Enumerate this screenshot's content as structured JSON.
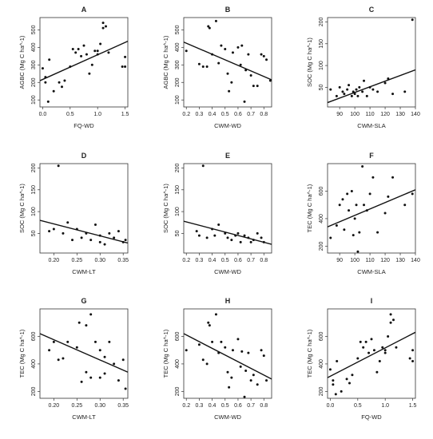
{
  "chart_data": [
    {
      "type": "scatter",
      "title": "A",
      "xlabel": "FQ-WD",
      "ylabel": "AGBC (Mg C ha^-1)",
      "xlim": [
        -0.05,
        1.55
      ],
      "ylim": [
        60,
        570
      ],
      "xticks": [
        0.0,
        0.5,
        1.0,
        1.5
      ],
      "xtick_labels": [
        "0.0",
        "0.5",
        "1.0",
        "1.5"
      ],
      "yticks": [
        100,
        200,
        300,
        400,
        500
      ],
      "ytick_labels": [
        "100",
        "200",
        "300",
        "400",
        "500"
      ],
      "x": [
        0.0,
        0.05,
        0.05,
        0.1,
        0.12,
        0.2,
        0.3,
        0.35,
        0.4,
        0.5,
        0.55,
        0.6,
        0.65,
        0.7,
        0.75,
        0.8,
        0.85,
        0.9,
        0.95,
        1.0,
        1.0,
        1.05,
        1.1,
        1.1,
        1.15,
        1.2,
        1.45,
        1.5,
        1.5
      ],
      "y": [
        280,
        200,
        230,
        90,
        330,
        150,
        200,
        175,
        210,
        290,
        390,
        370,
        390,
        350,
        410,
        360,
        250,
        300,
        380,
        360,
        380,
        420,
        510,
        540,
        520,
        370,
        290,
        290,
        345
      ],
      "trend": [
        [
          -0.05,
          210
        ],
        [
          1.55,
          435
        ]
      ]
    },
    {
      "type": "scatter",
      "title": "B",
      "xlabel": "CWM-WD",
      "ylabel": "AGBC (Mg C ha^-1)",
      "xlim": [
        0.18,
        0.86
      ],
      "ylim": [
        60,
        570
      ],
      "xticks": [
        0.2,
        0.3,
        0.4,
        0.5,
        0.6,
        0.7,
        0.8
      ],
      "xtick_labels": [
        "0.2",
        "0.3",
        "0.4",
        "0.5",
        "0.6",
        "0.7",
        "0.8"
      ],
      "yticks": [
        100,
        200,
        300,
        400,
        500
      ],
      "ytick_labels": [
        "100",
        "200",
        "300",
        "400",
        "500"
      ],
      "x": [
        0.2,
        0.3,
        0.33,
        0.36,
        0.37,
        0.38,
        0.4,
        0.43,
        0.45,
        0.47,
        0.5,
        0.52,
        0.53,
        0.55,
        0.56,
        0.6,
        0.62,
        0.63,
        0.65,
        0.66,
        0.68,
        0.7,
        0.72,
        0.75,
        0.78,
        0.8,
        0.82,
        0.85
      ],
      "y": [
        380,
        305,
        290,
        290,
        520,
        510,
        360,
        550,
        310,
        410,
        390,
        250,
        150,
        200,
        370,
        400,
        300,
        410,
        90,
        270,
        360,
        240,
        180,
        180,
        360,
        350,
        330,
        210
      ],
      "trend": [
        [
          0.18,
          430
        ],
        [
          0.86,
          215
        ]
      ]
    },
    {
      "type": "scatter",
      "title": "C",
      "xlabel": "CWM-SLA",
      "ylabel": "SOC (Mg C ha^-1)",
      "xlim": [
        82,
        140
      ],
      "ylim": [
        5,
        210
      ],
      "xticks": [
        90,
        100,
        110,
        120,
        130,
        140
      ],
      "xtick_labels": [
        "90",
        "100",
        "110",
        "120",
        "130",
        "140"
      ],
      "yticks": [
        50,
        100,
        150,
        200
      ],
      "ytick_labels": [
        "50",
        "100",
        "150",
        "200"
      ],
      "x": [
        84,
        88,
        90,
        92,
        93,
        95,
        96,
        98,
        99,
        100,
        101,
        102,
        103,
        105,
        106,
        108,
        110,
        112,
        115,
        120,
        122,
        125,
        133,
        138
      ],
      "y": [
        45,
        30,
        50,
        40,
        35,
        45,
        55,
        30,
        40,
        35,
        45,
        30,
        50,
        40,
        65,
        30,
        50,
        45,
        40,
        60,
        70,
        35,
        40,
        205
      ],
      "trend": [
        [
          82,
          15
        ],
        [
          140,
          90
        ]
      ]
    },
    {
      "type": "scatter",
      "title": "D",
      "xlabel": "CWM-LT",
      "ylabel": "SOC (Mg C ha^-1)",
      "xlim": [
        0.17,
        0.36
      ],
      "ylim": [
        5,
        210
      ],
      "xticks": [
        0.2,
        0.25,
        0.3,
        0.35
      ],
      "xtick_labels": [
        "0.20",
        "0.25",
        "0.30",
        "0.35"
      ],
      "yticks": [
        50,
        100,
        150,
        200
      ],
      "ytick_labels": [
        "50",
        "100",
        "150",
        "200"
      ],
      "x": [
        0.19,
        0.2,
        0.21,
        0.22,
        0.23,
        0.24,
        0.25,
        0.26,
        0.27,
        0.28,
        0.29,
        0.3,
        0.3,
        0.31,
        0.32,
        0.33,
        0.34,
        0.35,
        0.355
      ],
      "y": [
        55,
        60,
        205,
        50,
        75,
        35,
        60,
        40,
        50,
        35,
        70,
        30,
        45,
        25,
        50,
        40,
        55,
        30,
        35
      ],
      "trend": [
        [
          0.17,
          80
        ],
        [
          0.36,
          28
        ]
      ]
    },
    {
      "type": "scatter",
      "title": "E",
      "xlabel": "CWM-WD",
      "ylabel": "SOC (Mg C ha^-1)",
      "xlim": [
        0.18,
        0.86
      ],
      "ylim": [
        5,
        210
      ],
      "xticks": [
        0.2,
        0.3,
        0.4,
        0.5,
        0.6,
        0.7,
        0.8
      ],
      "xtick_labels": [
        "0.2",
        "0.3",
        "0.4",
        "0.5",
        "0.6",
        "0.7",
        "0.8"
      ],
      "yticks": [
        50,
        100,
        150,
        200
      ],
      "ytick_labels": [
        "50",
        "100",
        "150",
        "200"
      ],
      "x": [
        0.28,
        0.3,
        0.33,
        0.36,
        0.4,
        0.42,
        0.45,
        0.5,
        0.52,
        0.55,
        0.58,
        0.6,
        0.62,
        0.65,
        0.68,
        0.7,
        0.72,
        0.75,
        0.78,
        0.8
      ],
      "y": [
        55,
        45,
        205,
        40,
        60,
        45,
        70,
        50,
        40,
        35,
        45,
        50,
        30,
        45,
        40,
        30,
        35,
        50,
        40,
        30
      ],
      "trend": [
        [
          0.18,
          78
        ],
        [
          0.86,
          25
        ]
      ]
    },
    {
      "type": "scatter",
      "title": "F",
      "xlabel": "CWM-SLA",
      "ylabel": "TEC (Mg C ha^-1)",
      "xlim": [
        82,
        140
      ],
      "ylim": [
        150,
        800
      ],
      "xticks": [
        90,
        100,
        110,
        120,
        130,
        140
      ],
      "xtick_labels": [
        "90",
        "100",
        "110",
        "120",
        "130",
        "140"
      ],
      "yticks": [
        200,
        400,
        600
      ],
      "ytick_labels": [
        "200",
        "400",
        "600"
      ],
      "x": [
        84,
        88,
        90,
        92,
        93,
        95,
        96,
        98,
        99,
        100,
        101,
        102,
        103,
        105,
        106,
        108,
        110,
        112,
        115,
        120,
        122,
        125,
        133,
        138
      ],
      "y": [
        260,
        350,
        500,
        540,
        320,
        580,
        460,
        600,
        280,
        400,
        500,
        160,
        300,
        780,
        500,
        460,
        580,
        700,
        300,
        440,
        560,
        700,
        500,
        580
      ],
      "trend": [
        [
          82,
          340
        ],
        [
          140,
          610
        ]
      ]
    },
    {
      "type": "scatter",
      "title": "G",
      "xlabel": "CWM-LT",
      "ylabel": "TEC (Mg C ha^-1)",
      "xlim": [
        0.17,
        0.36
      ],
      "ylim": [
        150,
        800
      ],
      "xticks": [
        0.2,
        0.25,
        0.3,
        0.35
      ],
      "xtick_labels": [
        "0.20",
        "0.25",
        "0.30",
        "0.35"
      ],
      "yticks": [
        200,
        400,
        600
      ],
      "ytick_labels": [
        "200",
        "400",
        "600"
      ],
      "x": [
        0.19,
        0.2,
        0.21,
        0.22,
        0.23,
        0.25,
        0.255,
        0.26,
        0.27,
        0.27,
        0.28,
        0.28,
        0.29,
        0.3,
        0.3,
        0.31,
        0.31,
        0.32,
        0.33,
        0.34,
        0.35,
        0.355
      ],
      "y": [
        500,
        560,
        430,
        440,
        560,
        520,
        700,
        270,
        680,
        340,
        760,
        300,
        560,
        300,
        500,
        330,
        450,
        560,
        400,
        280,
        430,
        220
      ],
      "trend": [
        [
          0.17,
          620
        ],
        [
          0.36,
          340
        ]
      ]
    },
    {
      "type": "scatter",
      "title": "H",
      "xlabel": "CWM-WD",
      "ylabel": "TEC (Mg C ha^-1)",
      "xlim": [
        0.18,
        0.86
      ],
      "ylim": [
        150,
        800
      ],
      "xticks": [
        0.2,
        0.3,
        0.4,
        0.5,
        0.6,
        0.7,
        0.8
      ],
      "xtick_labels": [
        "0.2",
        "0.3",
        "0.4",
        "0.5",
        "0.6",
        "0.7",
        "0.8"
      ],
      "yticks": [
        200,
        400,
        600
      ],
      "ytick_labels": [
        "200",
        "400",
        "600"
      ],
      "x": [
        0.2,
        0.3,
        0.33,
        0.36,
        0.37,
        0.38,
        0.4,
        0.43,
        0.45,
        0.47,
        0.5,
        0.52,
        0.53,
        0.55,
        0.56,
        0.6,
        0.62,
        0.63,
        0.65,
        0.66,
        0.68,
        0.7,
        0.72,
        0.75,
        0.78,
        0.8,
        0.82
      ],
      "y": [
        500,
        540,
        430,
        400,
        700,
        680,
        560,
        760,
        480,
        560,
        520,
        340,
        230,
        300,
        500,
        580,
        380,
        490,
        160,
        350,
        480,
        280,
        320,
        250,
        500,
        460,
        280
      ],
      "trend": [
        [
          0.18,
          620
        ],
        [
          0.86,
          290
        ]
      ]
    },
    {
      "type": "scatter",
      "title": "I",
      "xlabel": "FQ-WD",
      "ylabel": "TEC (Mg C ha^-1)",
      "xlim": [
        -0.05,
        1.55
      ],
      "ylim": [
        150,
        800
      ],
      "xticks": [
        0.0,
        0.5,
        1.0,
        1.5
      ],
      "xtick_labels": [
        "0.0",
        "0.5",
        "1.0",
        "1.5"
      ],
      "yticks": [
        200,
        400,
        600
      ],
      "ytick_labels": [
        "200",
        "400",
        "600"
      ],
      "x": [
        0.0,
        0.05,
        0.05,
        0.1,
        0.12,
        0.2,
        0.3,
        0.35,
        0.4,
        0.5,
        0.55,
        0.6,
        0.65,
        0.7,
        0.75,
        0.8,
        0.85,
        0.9,
        0.95,
        1.0,
        1.0,
        1.05,
        1.1,
        1.1,
        1.15,
        1.2,
        1.45,
        1.5,
        1.5
      ],
      "y": [
        360,
        250,
        280,
        180,
        420,
        200,
        290,
        260,
        320,
        440,
        560,
        520,
        560,
        480,
        580,
        500,
        340,
        420,
        520,
        480,
        500,
        600,
        700,
        760,
        720,
        520,
        440,
        420,
        500
      ],
      "trend": [
        [
          -0.05,
          300
        ],
        [
          1.55,
          630
        ]
      ]
    }
  ]
}
